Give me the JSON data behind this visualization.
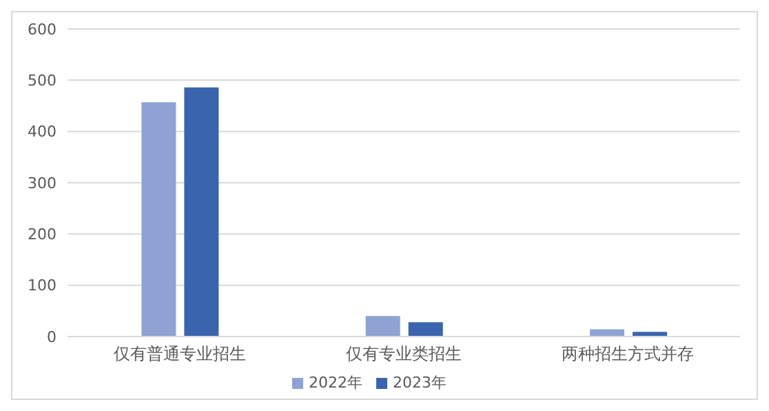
{
  "chart_data": {
    "type": "bar",
    "categories": [
      "仅有普通专业招生",
      "仅有专业类招生",
      "两种招生方式并存"
    ],
    "series": [
      {
        "name": "2022年",
        "color": "#8fa2d4",
        "values": [
          457,
          40,
          14
        ]
      },
      {
        "name": "2023年",
        "color": "#3a64ae",
        "values": [
          486,
          28,
          9
        ]
      }
    ],
    "ylim": [
      0,
      600
    ],
    "yticks": [
      0,
      100,
      200,
      300,
      400,
      500,
      600
    ],
    "grid": "y",
    "legend": "bottom"
  }
}
